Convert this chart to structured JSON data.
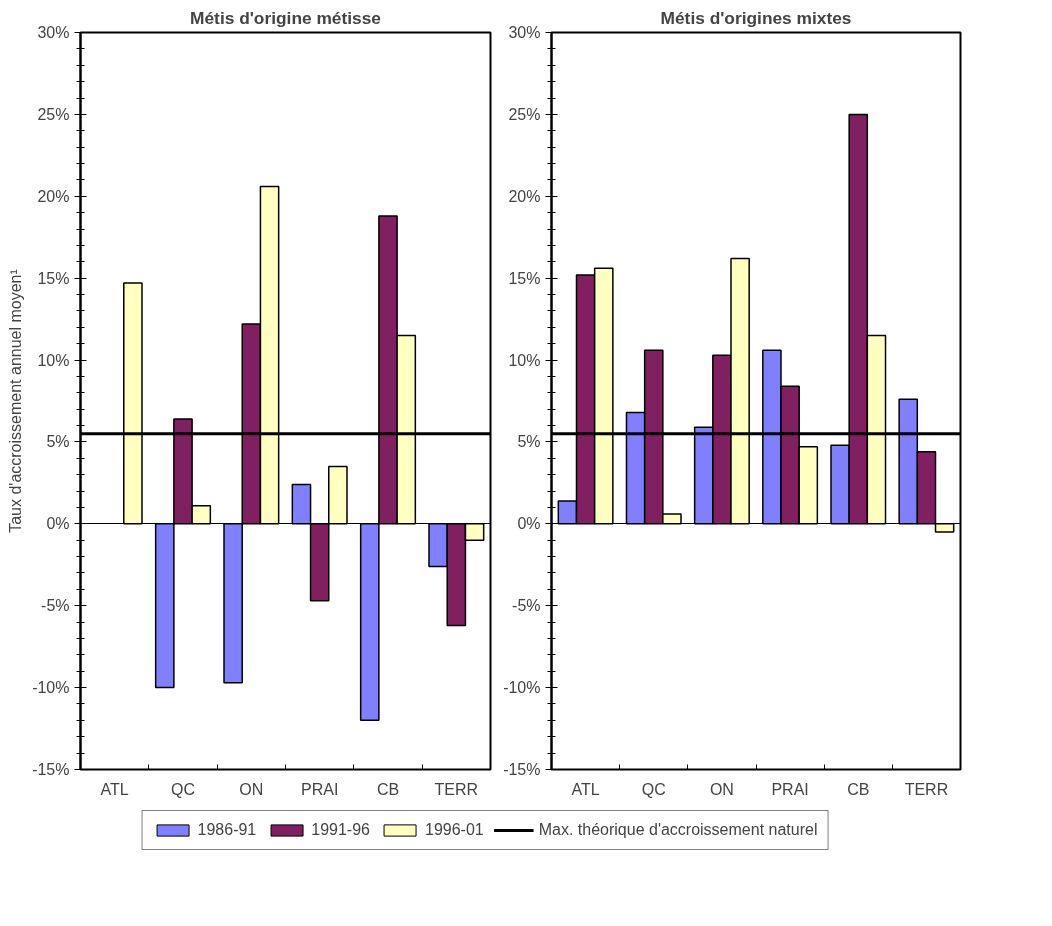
{
  "chart_data": [
    {
      "type": "bar",
      "title": "Métis d'origine métisse",
      "ylabel": "Taux d'accroissement annuel moyen¹",
      "categories": [
        "ATL",
        "QC",
        "ON",
        "PRAI",
        "CB",
        "TERR"
      ],
      "series": [
        {
          "name": "1986-91",
          "color": "#8080ff",
          "values": [
            null,
            -10.0,
            -9.7,
            2.4,
            -12.0,
            -2.6
          ]
        },
        {
          "name": "1991-96",
          "color": "#802060",
          "values": [
            null,
            6.4,
            12.2,
            -4.7,
            18.8,
            -6.2
          ]
        },
        {
          "name": "1996-01",
          "color": "#ffffc0",
          "values": [
            14.7,
            1.1,
            20.6,
            3.5,
            11.5,
            -1.0
          ]
        }
      ],
      "ylim": [
        -15,
        30
      ],
      "yticks": [
        {
          "value": -15,
          "label": "-15%"
        },
        {
          "value": -10,
          "label": "-10%"
        },
        {
          "value": -5,
          "label": "-5%"
        },
        {
          "value": 0,
          "label": "0%"
        },
        {
          "value": 5,
          "label": "5%"
        },
        {
          "value": 10,
          "label": "10%"
        },
        {
          "value": 15,
          "label": "15%"
        },
        {
          "value": 20,
          "label": "20%"
        },
        {
          "value": 25,
          "label": "25%"
        },
        {
          "value": 30,
          "label": "30%"
        }
      ],
      "ref_lines": [
        {
          "axis": "y",
          "value": 5.5,
          "label": "Max. théorique d'accroissement naturel",
          "color": "#000000"
        }
      ],
      "legend": "bottom"
    },
    {
      "type": "bar",
      "title": "Métis d'origines mixtes",
      "categories": [
        "ATL",
        "QC",
        "ON",
        "PRAI",
        "CB",
        "TERR"
      ],
      "series": [
        {
          "name": "1986-91",
          "color": "#8080ff",
          "values": [
            1.4,
            6.8,
            5.9,
            10.6,
            4.8,
            7.6
          ]
        },
        {
          "name": "1991-96",
          "color": "#802060",
          "values": [
            15.2,
            10.6,
            10.3,
            8.4,
            25.0,
            4.4
          ]
        },
        {
          "name": "1996-01",
          "color": "#ffffc0",
          "values": [
            15.6,
            0.6,
            16.2,
            4.7,
            11.5,
            -0.5
          ]
        }
      ],
      "ylim": [
        -15,
        30
      ],
      "yticks": [
        {
          "value": -15,
          "label": "-15%"
        },
        {
          "value": -10,
          "label": "-10%"
        },
        {
          "value": -5,
          "label": "-5%"
        },
        {
          "value": 0,
          "label": "0%"
        },
        {
          "value": 5,
          "label": "5%"
        },
        {
          "value": 10,
          "label": "10%"
        },
        {
          "value": 15,
          "label": "15%"
        },
        {
          "value": 20,
          "label": "20%"
        },
        {
          "value": 25,
          "label": "25%"
        },
        {
          "value": 30,
          "label": "30%"
        }
      ],
      "ref_lines": [
        {
          "axis": "y",
          "value": 5.5,
          "label": null,
          "color": "#000000"
        }
      ]
    }
  ]
}
